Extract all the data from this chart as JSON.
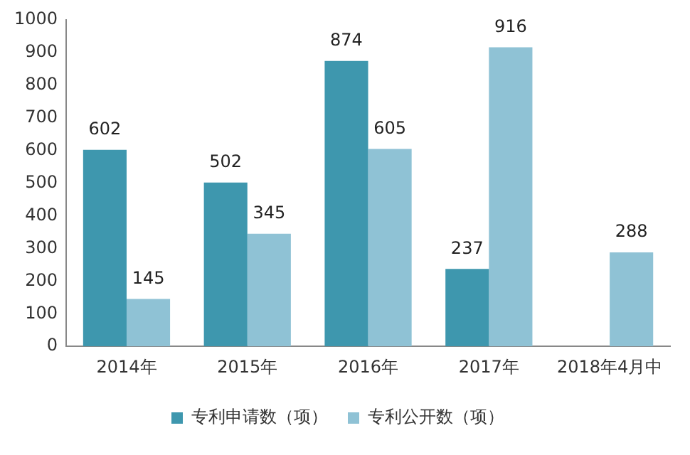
{
  "chart_data": {
    "type": "bar",
    "categories": [
      "2014年",
      "2015年",
      "2016年",
      "2017年",
      "2018年4月中"
    ],
    "series": [
      {
        "name": "专利申请数（项）",
        "color": "#3e97ae",
        "values": [
          602,
          502,
          874,
          237,
          null
        ]
      },
      {
        "name": "专利公开数（项）",
        "color": "#8fc2d5",
        "values": [
          145,
          345,
          605,
          916,
          288
        ]
      }
    ],
    "ylim": [
      0,
      1000
    ],
    "yticks": [
      0,
      100,
      200,
      300,
      400,
      500,
      600,
      700,
      800,
      900,
      1000
    ],
    "grid": false,
    "legend": "bottom",
    "data_labels": true
  }
}
